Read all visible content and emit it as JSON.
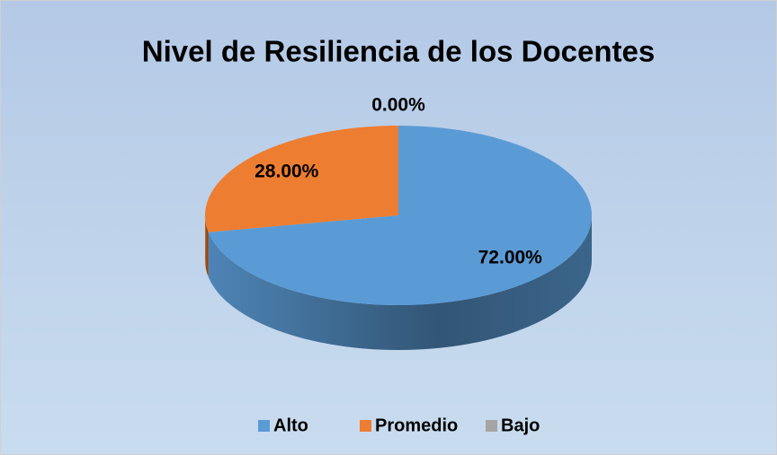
{
  "chart_data": {
    "type": "pie",
    "title": "Nivel de Resiliencia de los Docentes",
    "categories": [
      "Alto",
      "Promedio",
      "Bajo"
    ],
    "values": [
      72,
      28,
      0
    ],
    "value_labels": [
      "72.00%",
      "28.00%",
      "0.00%"
    ],
    "colors": [
      "#5b9bd5",
      "#ed7d31",
      "#a5a5a5"
    ],
    "legend": "bottom"
  }
}
